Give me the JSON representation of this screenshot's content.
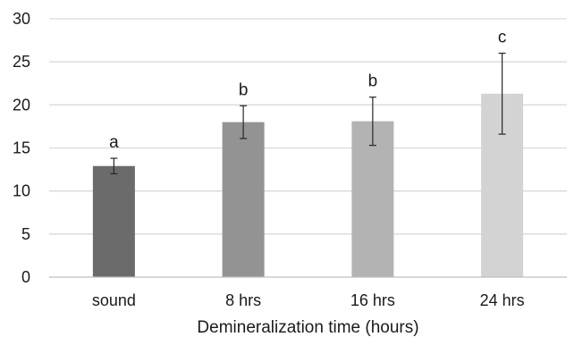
{
  "chart_data": {
    "type": "bar",
    "title": "",
    "xlabel": "Demineralization time (hours)",
    "ylabel": "",
    "ylim": [
      0,
      30
    ],
    "yticks": [
      0,
      5,
      10,
      15,
      20,
      25,
      30
    ],
    "grid": true,
    "legend": "none",
    "categories": [
      "sound",
      "8 hrs",
      "16 hrs",
      "24 hrs"
    ],
    "values": [
      12.9,
      18.0,
      18.1,
      21.3
    ],
    "errors": [
      0.9,
      1.9,
      2.8,
      4.7
    ],
    "significance_labels": [
      "a",
      "b",
      "b",
      "c"
    ],
    "bar_colors": [
      "#6b6b6b",
      "#939393",
      "#b3b3b3",
      "#d3d3d3"
    ],
    "grid_color": "#d9d9d9",
    "axis_color": "#bfbfbf"
  }
}
